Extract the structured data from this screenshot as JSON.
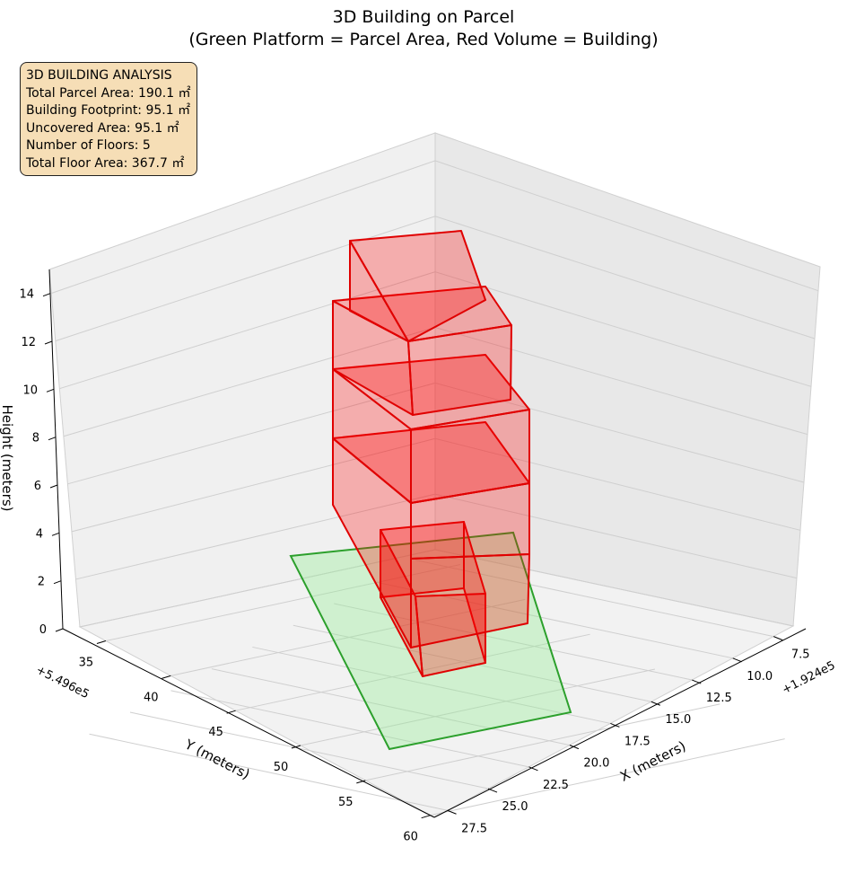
{
  "chart_data": {
    "type": "3d-polygons",
    "title": "3D Building on Parcel",
    "subtitle": "(Green Platform = Parcel Area, Red Volume = Building)",
    "xlabel": "X (meters)",
    "ylabel": "Y (meters)",
    "zlabel": "Height (meters)",
    "x_offset_label": "+1.924e5",
    "y_offset_label": "+5.496e5",
    "x_ticks": [
      "7.5",
      "10.0",
      "12.5",
      "15.0",
      "17.5",
      "20.0",
      "22.5",
      "25.0",
      "27.5"
    ],
    "y_ticks": [
      "35",
      "40",
      "45",
      "50",
      "55",
      "60"
    ],
    "z_ticks": [
      "0",
      "2",
      "4",
      "6",
      "8",
      "10",
      "12",
      "14"
    ],
    "parcel": {
      "color": "#2ca02c",
      "fill": "#90ee90",
      "label": "Parcel Area"
    },
    "building": {
      "color": "#e00000",
      "fill": "#ff0000",
      "label": "Building",
      "floors": 5
    },
    "analysis": {
      "heading": "3D BUILDING ANALYSIS",
      "total_parcel_area": "Total Parcel Area: 190.1 ㎡",
      "building_footprint": "Building Footprint: 95.1 ㎡",
      "uncovered_area": "Uncovered Area: 95.1 ㎡",
      "number_of_floors": "Number of Floors: 5",
      "total_floor_area": "Total Floor Area: 367.7 ㎡"
    }
  }
}
